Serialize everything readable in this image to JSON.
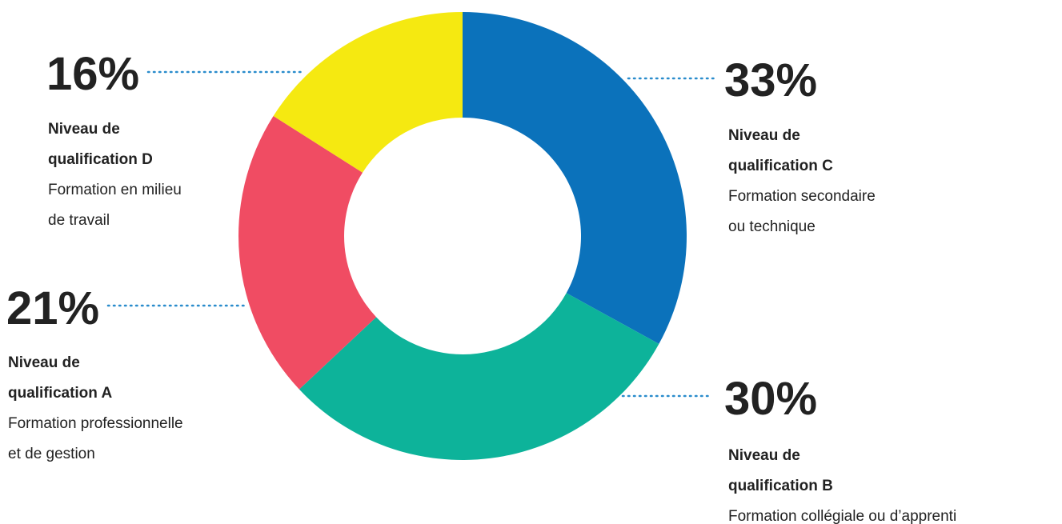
{
  "chart_data": {
    "type": "donut",
    "categories": [
      [
        "Niveau de",
        "qualification C"
      ],
      [
        "Niveau de",
        "qualification B"
      ],
      [
        "Niveau de",
        "qualification A"
      ],
      [
        "Niveau de",
        "qualification D"
      ]
    ],
    "descriptions": [
      [
        "Formation secondaire",
        "ou technique"
      ],
      [
        "Formation collégiale ou d’apprenti"
      ],
      [
        "Formation professionnelle",
        "et de gestion"
      ],
      [
        "Formation en milieu",
        "de travail"
      ]
    ],
    "values": [
      33,
      30,
      21,
      16
    ],
    "value_labels": [
      "33%",
      "30%",
      "21%",
      "16%"
    ],
    "colors": [
      "#0b72bb",
      "#0db39a",
      "#f04c63",
      "#f5e911"
    ]
  }
}
